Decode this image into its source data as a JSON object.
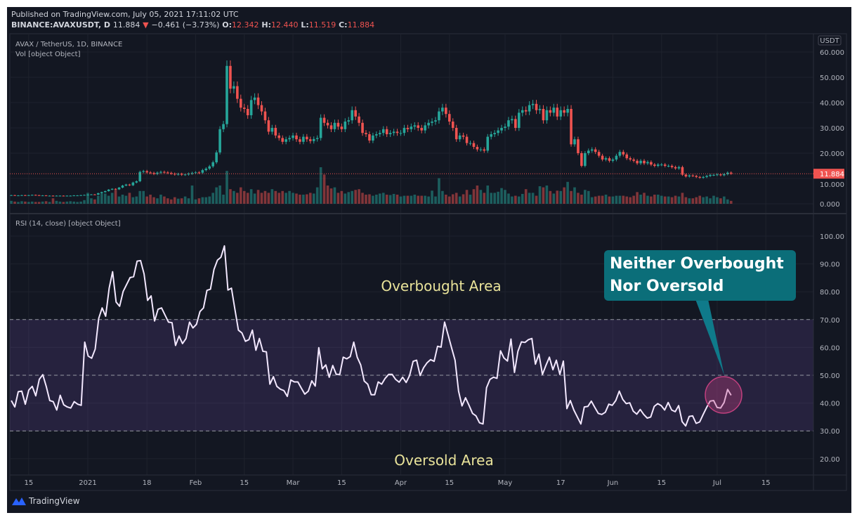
{
  "header": {
    "published": "Published on TradingView.com, July 05, 2021 17:11:02 UTC",
    "symbol": "BINANCE:AVAXUSDT, D",
    "last": "11.884",
    "change": "−0.461 (−3.73%)",
    "o_label": "O:",
    "o": "12.342",
    "h_label": "H:",
    "h": "12.440",
    "l_label": "L:",
    "l": "11.519",
    "c_label": "C:",
    "c": "11.884",
    "direction_icon": "triangle-down-icon"
  },
  "legend": {
    "main": "AVAX / TetherUS, 1D, BINANCE",
    "volume": "Vol [object Object]",
    "rsi": "RSI (14, close) [object Object]"
  },
  "logo": {
    "text": "TradingView",
    "icon": "tradingview-logo-icon"
  },
  "colors": {
    "up": "#26a69a",
    "down": "#ef5350",
    "rsi_line": "#f3e8ff",
    "rsi_band": "#7e57c2",
    "callout": "#0b6e79",
    "highlight": "#c2407f",
    "area_label": "#e9e39a"
  },
  "chart_data": [
    {
      "type": "candlestick",
      "title": "AVAX / TetherUS, 1D, BINANCE",
      "currency_label": "USDT",
      "start_date": "2020-12-10",
      "end_date": "2021-07-05",
      "ylim": [
        0,
        60
      ],
      "y_ticks": [
        "60.000",
        "50.000",
        "40.000",
        "30.000",
        "20.000",
        "10.000",
        "0.000"
      ],
      "y_tick_values": [
        60,
        50,
        40,
        30,
        20,
        10,
        0
      ],
      "last_price": 11.884,
      "last_price_label": "11.884",
      "grid": true,
      "closes": [
        3.4,
        3.3,
        3.3,
        3.4,
        3.3,
        3.4,
        3.5,
        3.4,
        3.3,
        3.3,
        3.2,
        3.2,
        3.1,
        3.2,
        3.2,
        3.1,
        3.2,
        3.2,
        3.3,
        3.3,
        3.4,
        3.5,
        3.6,
        3.7,
        3.6,
        4.2,
        4.6,
        5.0,
        5.6,
        5.9,
        5.7,
        6.4,
        7.2,
        7.6,
        7.3,
        8.4,
        8.9,
        12.6,
        12.9,
        12.4,
        12.2,
        11.8,
        12.3,
        12.6,
        12.4,
        12.2,
        11.9,
        11.6,
        11.8,
        11.5,
        11.6,
        11.9,
        12.2,
        12.4,
        12.3,
        13.3,
        13.9,
        14.8,
        16.4,
        20.3,
        29.5,
        31.5,
        54.5,
        45.5,
        46.5,
        41.5,
        38.0,
        37.5,
        35.0,
        41.0,
        42.0,
        39.0,
        36.5,
        33.0,
        28.5,
        30.0,
        27.0,
        26.0,
        24.5,
        25.5,
        26.0,
        27.0,
        25.5,
        24.5,
        26.5,
        25.5,
        24.8,
        25.6,
        26.0,
        34.0,
        32.0,
        31.0,
        29.5,
        32.0,
        30.5,
        29.5,
        32.5,
        33.0,
        37.0,
        34.5,
        32.0,
        28.0,
        27.5,
        25.0,
        27.0,
        27.5,
        28.0,
        29.5,
        27.5,
        28.0,
        28.5,
        28.0,
        28.0,
        30.0,
        29.5,
        30.5,
        31.0,
        30.0,
        29.0,
        31.0,
        32.0,
        32.5,
        33.0,
        36.5,
        38.0,
        35.5,
        32.5,
        30.0,
        25.5,
        27.0,
        26.5,
        24.0,
        24.0,
        22.5,
        21.5,
        21.5,
        21.0,
        26.5,
        27.5,
        28.0,
        29.0,
        30.0,
        30.5,
        33.0,
        33.5,
        30.0,
        36.0,
        37.0,
        36.5,
        39.0,
        39.5,
        37.0,
        37.5,
        33.0,
        37.0,
        36.0,
        38.0,
        34.5,
        37.0,
        36.0,
        37.5,
        23.5,
        25.5,
        20.0,
        15.0,
        20.0,
        21.0,
        21.5,
        20.5,
        19.0,
        17.5,
        18.0,
        17.0,
        17.5,
        19.0,
        20.5,
        19.5,
        18.0,
        17.5,
        17.0,
        16.0,
        17.0,
        16.0,
        16.5,
        15.5,
        15.0,
        15.5,
        15.5,
        15.0,
        15.0,
        14.5,
        14.0,
        14.5,
        11.5,
        10.8,
        11.2,
        11.0,
        10.6,
        10.3,
        10.6,
        11.0,
        11.4,
        11.4,
        11.6,
        11.3,
        11.7,
        12.3,
        11.884
      ],
      "volume_relative": [
        8,
        6,
        5,
        7,
        6,
        5,
        6,
        5,
        5,
        6,
        7,
        5,
        15,
        8,
        6,
        5,
        6,
        7,
        6,
        5,
        6,
        10,
        30,
        15,
        12,
        22,
        28,
        28,
        22,
        30,
        38,
        20,
        25,
        22,
        30,
        18,
        20,
        35,
        35,
        20,
        25,
        18,
        15,
        25,
        20,
        15,
        12,
        18,
        14,
        15,
        20,
        15,
        50,
        12,
        15,
        18,
        18,
        20,
        30,
        45,
        50,
        25,
        90,
        40,
        35,
        30,
        45,
        35,
        30,
        40,
        28,
        38,
        30,
        35,
        30,
        40,
        35,
        30,
        35,
        30,
        35,
        30,
        28,
        25,
        25,
        26,
        30,
        28,
        45,
        100,
        80,
        50,
        42,
        45,
        30,
        35,
        28,
        32,
        35,
        38,
        40,
        30,
        25,
        26,
        22,
        25,
        28,
        30,
        25,
        24,
        27,
        25,
        20,
        22,
        22,
        22,
        25,
        22,
        22,
        22,
        20,
        36,
        20,
        70,
        35,
        25,
        20,
        26,
        30,
        20,
        26,
        38,
        25,
        40,
        50,
        38,
        30,
        50,
        30,
        30,
        33,
        43,
        38,
        28,
        20,
        22,
        20,
        27,
        40,
        30,
        30,
        22,
        48,
        45,
        50,
        35,
        28,
        36,
        35,
        45,
        60,
        35,
        45,
        30,
        25,
        38,
        35,
        18,
        20,
        22,
        22,
        25,
        20,
        20,
        22,
        22,
        22,
        20,
        18,
        22,
        32,
        25,
        30,
        22,
        20,
        25,
        25,
        22,
        20,
        20,
        18,
        22,
        20,
        30,
        18,
        15,
        15,
        18,
        22,
        18,
        20,
        15,
        22,
        18,
        15,
        20,
        12,
        8
      ]
    },
    {
      "type": "line",
      "title": "RSI (14, close)",
      "ylim": [
        15,
        105
      ],
      "y_ticks": [
        "100.00",
        "90.00",
        "80.00",
        "70.00",
        "60.00",
        "50.00",
        "40.00",
        "30.00",
        "20.00"
      ],
      "y_tick_values": [
        100,
        90,
        80,
        70,
        60,
        50,
        40,
        30,
        20
      ],
      "band": [
        30,
        70
      ],
      "reference_lines": [
        70,
        50,
        30
      ],
      "start_date": "2020-12-10",
      "end_date": "2021-07-05",
      "grid": true,
      "values": [
        40.9,
        38.6,
        44.1,
        44.3,
        39.6,
        44.7,
        46.0,
        42.6,
        48.5,
        50.2,
        46.0,
        40.9,
        40.5,
        37.5,
        42.8,
        39.4,
        38.6,
        38.2,
        40.5,
        39.6,
        39.2,
        61.9,
        56.9,
        56.1,
        59.4,
        70.4,
        74.2,
        71.2,
        81.3,
        87.2,
        76.3,
        74.8,
        80.1,
        82.6,
        85.1,
        85.4,
        91.0,
        91.2,
        86.4,
        76.9,
        78.5,
        69.5,
        73.7,
        74.2,
        71.6,
        69.1,
        68.9,
        60.7,
        64.1,
        61.4,
        63.2,
        69.1,
        67.0,
        68.3,
        72.9,
        74.2,
        80.5,
        80.9,
        88.0,
        91.4,
        92.4,
        96.5,
        80.6,
        81.3,
        73.7,
        66.2,
        65.2,
        62.2,
        62.8,
        66.2,
        59.0,
        63.2,
        58.6,
        58.4,
        46.8,
        49.5,
        46.0,
        45.0,
        44.5,
        42.4,
        48.3,
        47.6,
        47.6,
        45.4,
        43.2,
        44.3,
        48.0,
        46.1,
        59.9,
        52.3,
        53.7,
        49.3,
        53.5,
        50.3,
        50.3,
        56.5,
        55.9,
        56.7,
        61.9,
        56.5,
        53.7,
        47.9,
        46.8,
        43.0,
        43.0,
        47.6,
        46.8,
        48.9,
        50.3,
        50.3,
        48.5,
        47.5,
        49.3,
        47.4,
        49.9,
        55.0,
        55.4,
        49.9,
        52.7,
        54.5,
        55.6,
        55.0,
        60.4,
        60.1,
        69.1,
        64.5,
        59.9,
        55.4,
        44.3,
        39.0,
        41.9,
        39.2,
        36.3,
        35.4,
        32.9,
        32.5,
        45.5,
        48.5,
        49.3,
        48.9,
        58.8,
        56.2,
        55.1,
        63.0,
        51.0,
        58.6,
        62.0,
        61.8,
        62.8,
        63.2,
        54.0,
        57.6,
        50.3,
        53.5,
        56.5,
        52.0,
        55.4,
        50.3,
        55.1,
        38.0,
        40.9,
        37.5,
        35.0,
        32.5,
        38.6,
        38.8,
        40.7,
        38.4,
        36.3,
        35.9,
        36.7,
        39.6,
        39.2,
        40.9,
        44.3,
        41.3,
        39.8,
        40.1,
        37.1,
        36.0,
        37.7,
        35.9,
        34.6,
        35.0,
        38.8,
        39.8,
        39.1,
        37.5,
        40.2,
        37.5,
        36.9,
        39.1,
        33.3,
        31.8,
        35.2,
        35.4,
        32.7,
        33.2,
        35.9,
        38.4,
        40.7,
        40.9,
        38.4,
        38.2,
        40.2,
        44.9,
        42.8
      ],
      "annotations": {
        "overbought": "Overbought Area",
        "oversold": "Oversold Area",
        "callout_line1": "Neither Overbought",
        "callout_line2": "Nor Oversold"
      }
    }
  ],
  "x_axis": {
    "tick_labels": [
      "15",
      "2021",
      "18",
      "Feb",
      "15",
      "Mar",
      "15",
      "Apr",
      "15",
      "May",
      "17",
      "Jun",
      "15",
      "Jul",
      "15"
    ],
    "tick_dates": [
      "2020-12-15",
      "2021-01-01",
      "2021-01-18",
      "2021-02-01",
      "2021-02-15",
      "2021-03-01",
      "2021-03-15",
      "2021-04-01",
      "2021-04-15",
      "2021-05-01",
      "2021-05-17",
      "2021-06-01",
      "2021-06-15",
      "2021-07-01",
      "2021-07-15"
    ]
  }
}
